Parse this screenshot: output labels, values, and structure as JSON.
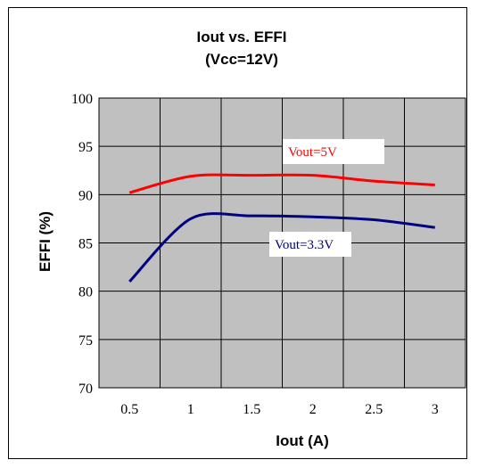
{
  "chart_data": {
    "type": "line",
    "title": "Iout  vs. EFFI",
    "subtitle": "(Vcc=12V)",
    "xlabel": "Iout (A)",
    "ylabel": "EFFI (%)",
    "x_ticks": [
      "0.5",
      "1",
      "1.5",
      "2",
      "2.5",
      "3"
    ],
    "y_ticks": [
      "70",
      "75",
      "80",
      "85",
      "90",
      "95",
      "100"
    ],
    "xlim": [
      0.25,
      3.25
    ],
    "ylim": [
      70,
      100
    ],
    "grid": true,
    "plot_background": "#c0c0c0",
    "series": [
      {
        "name": "Vout=5V",
        "color": "#ff0000",
        "x": [
          0.5,
          1,
          1.5,
          2,
          2.5,
          3
        ],
        "values": [
          90.2,
          91.9,
          92.0,
          92.0,
          91.4,
          91.0
        ]
      },
      {
        "name": "Vout=3.3V",
        "color": "#000080",
        "x": [
          0.5,
          1,
          1.5,
          2,
          2.5,
          3
        ],
        "values": [
          81.0,
          87.5,
          87.8,
          87.7,
          87.4,
          86.6
        ]
      }
    ]
  }
}
